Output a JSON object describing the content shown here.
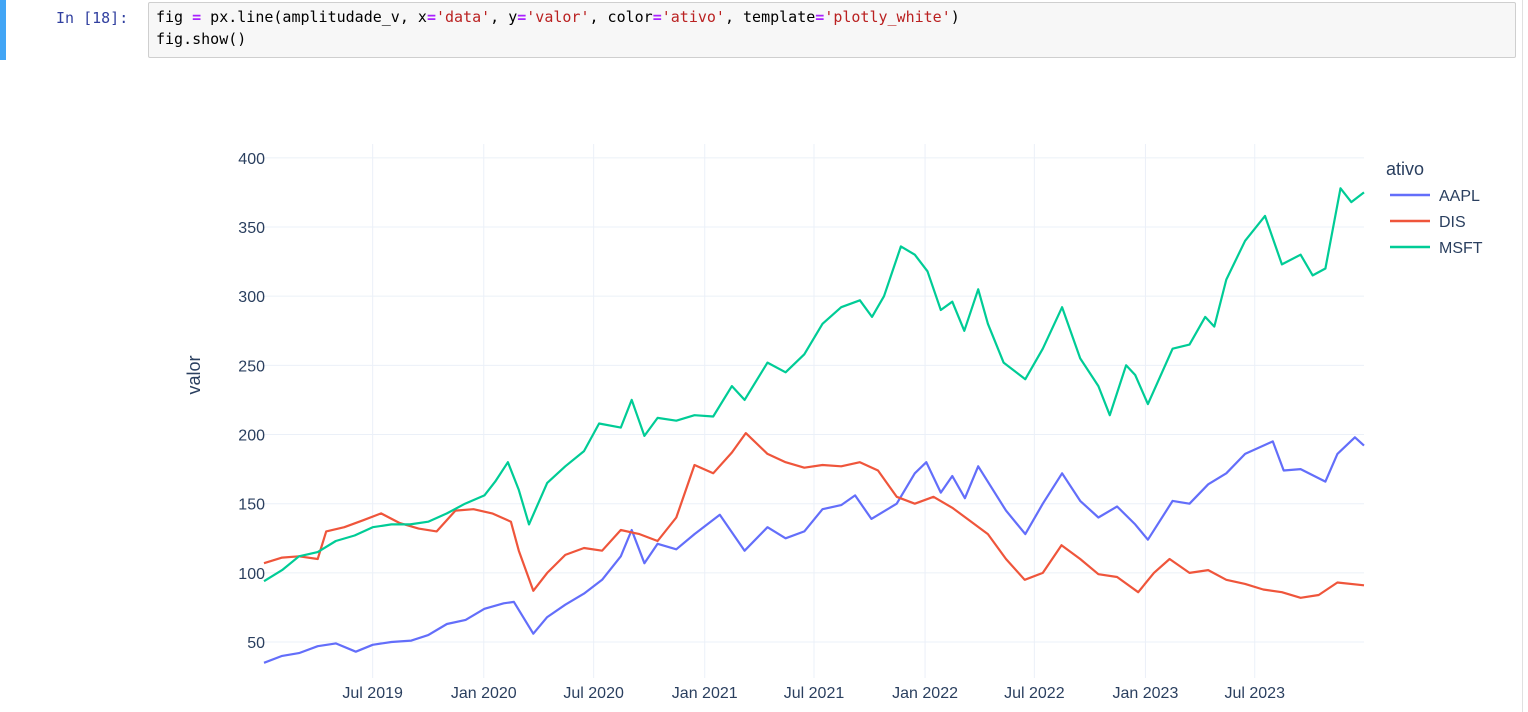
{
  "cell": {
    "prompt": "In [18]:",
    "code_tokens": [
      [
        {
          "t": "fig ",
          "c": ""
        },
        {
          "t": "=",
          "c": "op"
        },
        {
          "t": " px.line(amplitudade_v, x",
          "c": ""
        },
        {
          "t": "=",
          "c": "op"
        },
        {
          "t": "'data'",
          "c": "str"
        },
        {
          "t": ", y",
          "c": ""
        },
        {
          "t": "=",
          "c": "op"
        },
        {
          "t": "'valor'",
          "c": "str"
        },
        {
          "t": ", color",
          "c": ""
        },
        {
          "t": "=",
          "c": "op"
        },
        {
          "t": "'ativo'",
          "c": "str"
        },
        {
          "t": ", template",
          "c": ""
        },
        {
          "t": "=",
          "c": "op"
        },
        {
          "t": "'plotly_white'",
          "c": "str"
        },
        {
          "t": ")",
          "c": ""
        }
      ],
      [
        {
          "t": "fig.show()",
          "c": ""
        }
      ]
    ]
  },
  "chart_data": {
    "type": "line",
    "xlabel": "",
    "ylabel": "valor",
    "legend_title": "ativo",
    "legend_position": "top-right",
    "grid": true,
    "x_range": [
      "2019-01-02",
      "2023-12-29"
    ],
    "ylim": [
      24,
      410
    ],
    "y_ticks": [
      50,
      100,
      150,
      200,
      250,
      300,
      350,
      400
    ],
    "x_ticks": [
      {
        "date": "2019-07-01",
        "label": "Jul 2019"
      },
      {
        "date": "2020-01-01",
        "label": "Jan 2020"
      },
      {
        "date": "2020-07-01",
        "label": "Jul 2020"
      },
      {
        "date": "2021-01-01",
        "label": "Jan 2021"
      },
      {
        "date": "2021-07-01",
        "label": "Jul 2021"
      },
      {
        "date": "2022-01-01",
        "label": "Jan 2022"
      },
      {
        "date": "2022-07-01",
        "label": "Jul 2022"
      },
      {
        "date": "2023-01-01",
        "label": "Jan 2023"
      },
      {
        "date": "2023-07-01",
        "label": "Jul 2023"
      }
    ],
    "series": [
      {
        "name": "AAPL",
        "color": "#636efa",
        "points": [
          [
            "2019-01-02",
            35
          ],
          [
            "2019-02-01",
            40
          ],
          [
            "2019-03-01",
            42
          ],
          [
            "2019-04-01",
            47
          ],
          [
            "2019-05-01",
            49
          ],
          [
            "2019-06-03",
            43
          ],
          [
            "2019-07-01",
            48
          ],
          [
            "2019-08-01",
            50
          ],
          [
            "2019-09-03",
            51
          ],
          [
            "2019-10-01",
            55
          ],
          [
            "2019-11-01",
            63
          ],
          [
            "2019-12-02",
            66
          ],
          [
            "2020-01-02",
            74
          ],
          [
            "2020-02-03",
            78
          ],
          [
            "2020-02-20",
            79
          ],
          [
            "2020-03-23",
            56
          ],
          [
            "2020-04-15",
            68
          ],
          [
            "2020-05-15",
            77
          ],
          [
            "2020-06-15",
            85
          ],
          [
            "2020-07-15",
            95
          ],
          [
            "2020-08-15",
            112
          ],
          [
            "2020-09-02",
            131
          ],
          [
            "2020-09-23",
            107
          ],
          [
            "2020-10-15",
            121
          ],
          [
            "2020-11-15",
            117
          ],
          [
            "2020-12-15",
            128
          ],
          [
            "2021-01-26",
            142
          ],
          [
            "2021-03-08",
            116
          ],
          [
            "2021-04-15",
            133
          ],
          [
            "2021-05-15",
            125
          ],
          [
            "2021-06-15",
            130
          ],
          [
            "2021-07-15",
            146
          ],
          [
            "2021-08-15",
            149
          ],
          [
            "2021-09-07",
            156
          ],
          [
            "2021-10-04",
            139
          ],
          [
            "2021-11-15",
            150
          ],
          [
            "2021-12-15",
            172
          ],
          [
            "2022-01-03",
            180
          ],
          [
            "2022-01-27",
            158
          ],
          [
            "2022-02-15",
            170
          ],
          [
            "2022-03-08",
            154
          ],
          [
            "2022-03-30",
            177
          ],
          [
            "2022-05-15",
            145
          ],
          [
            "2022-06-16",
            128
          ],
          [
            "2022-07-15",
            150
          ],
          [
            "2022-08-16",
            172
          ],
          [
            "2022-09-15",
            152
          ],
          [
            "2022-10-15",
            140
          ],
          [
            "2022-11-15",
            148
          ],
          [
            "2022-12-15",
            135
          ],
          [
            "2023-01-05",
            124
          ],
          [
            "2023-02-15",
            152
          ],
          [
            "2023-03-15",
            150
          ],
          [
            "2023-04-15",
            164
          ],
          [
            "2023-05-15",
            172
          ],
          [
            "2023-06-15",
            186
          ],
          [
            "2023-07-31",
            195
          ],
          [
            "2023-08-18",
            174
          ],
          [
            "2023-09-15",
            175
          ],
          [
            "2023-10-26",
            166
          ],
          [
            "2023-11-15",
            186
          ],
          [
            "2023-12-14",
            198
          ],
          [
            "2023-12-29",
            192
          ]
        ]
      },
      {
        "name": "DIS",
        "color": "#ef553b",
        "points": [
          [
            "2019-01-02",
            107
          ],
          [
            "2019-02-01",
            111
          ],
          [
            "2019-03-01",
            112
          ],
          [
            "2019-04-01",
            110
          ],
          [
            "2019-04-15",
            130
          ],
          [
            "2019-05-15",
            133
          ],
          [
            "2019-06-15",
            138
          ],
          [
            "2019-07-15",
            143
          ],
          [
            "2019-08-15",
            136
          ],
          [
            "2019-09-15",
            132
          ],
          [
            "2019-10-15",
            130
          ],
          [
            "2019-11-15",
            145
          ],
          [
            "2019-12-15",
            146
          ],
          [
            "2020-01-15",
            143
          ],
          [
            "2020-02-15",
            137
          ],
          [
            "2020-02-28",
            116
          ],
          [
            "2020-03-23",
            87
          ],
          [
            "2020-04-15",
            100
          ],
          [
            "2020-05-15",
            113
          ],
          [
            "2020-06-15",
            118
          ],
          [
            "2020-07-15",
            116
          ],
          [
            "2020-08-15",
            131
          ],
          [
            "2020-09-15",
            128
          ],
          [
            "2020-10-15",
            123
          ],
          [
            "2020-11-15",
            140
          ],
          [
            "2020-12-15",
            178
          ],
          [
            "2021-01-15",
            172
          ],
          [
            "2021-02-15",
            187
          ],
          [
            "2021-03-10",
            201
          ],
          [
            "2021-04-15",
            186
          ],
          [
            "2021-05-15",
            180
          ],
          [
            "2021-06-15",
            176
          ],
          [
            "2021-07-15",
            178
          ],
          [
            "2021-08-15",
            177
          ],
          [
            "2021-09-15",
            180
          ],
          [
            "2021-10-15",
            174
          ],
          [
            "2021-11-15",
            155
          ],
          [
            "2021-12-15",
            150
          ],
          [
            "2022-01-15",
            155
          ],
          [
            "2022-02-15",
            147
          ],
          [
            "2022-03-15",
            138
          ],
          [
            "2022-04-15",
            128
          ],
          [
            "2022-05-15",
            110
          ],
          [
            "2022-06-15",
            95
          ],
          [
            "2022-07-15",
            100
          ],
          [
            "2022-08-15",
            120
          ],
          [
            "2022-09-15",
            110
          ],
          [
            "2022-10-15",
            99
          ],
          [
            "2022-11-15",
            97
          ],
          [
            "2022-12-20",
            86
          ],
          [
            "2023-01-15",
            100
          ],
          [
            "2023-02-10",
            110
          ],
          [
            "2023-03-15",
            100
          ],
          [
            "2023-04-15",
            102
          ],
          [
            "2023-05-15",
            95
          ],
          [
            "2023-06-15",
            92
          ],
          [
            "2023-07-15",
            88
          ],
          [
            "2023-08-15",
            86
          ],
          [
            "2023-09-15",
            82
          ],
          [
            "2023-10-15",
            84
          ],
          [
            "2023-11-15",
            93
          ],
          [
            "2023-12-29",
            91
          ]
        ]
      },
      {
        "name": "MSFT",
        "color": "#00cc96",
        "points": [
          [
            "2019-01-02",
            94
          ],
          [
            "2019-02-01",
            102
          ],
          [
            "2019-03-01",
            112
          ],
          [
            "2019-04-01",
            115
          ],
          [
            "2019-05-01",
            123
          ],
          [
            "2019-06-01",
            127
          ],
          [
            "2019-07-01",
            133
          ],
          [
            "2019-08-01",
            135
          ],
          [
            "2019-09-01",
            135
          ],
          [
            "2019-10-01",
            137
          ],
          [
            "2019-11-01",
            143
          ],
          [
            "2019-12-01",
            150
          ],
          [
            "2020-01-02",
            156
          ],
          [
            "2020-01-20",
            166
          ],
          [
            "2020-02-10",
            180
          ],
          [
            "2020-02-28",
            160
          ],
          [
            "2020-03-16",
            135
          ],
          [
            "2020-04-15",
            165
          ],
          [
            "2020-05-15",
            177
          ],
          [
            "2020-06-15",
            188
          ],
          [
            "2020-07-10",
            208
          ],
          [
            "2020-08-15",
            205
          ],
          [
            "2020-09-02",
            225
          ],
          [
            "2020-09-23",
            199
          ],
          [
            "2020-10-15",
            212
          ],
          [
            "2020-11-15",
            210
          ],
          [
            "2020-12-15",
            214
          ],
          [
            "2021-01-15",
            213
          ],
          [
            "2021-02-15",
            235
          ],
          [
            "2021-03-08",
            225
          ],
          [
            "2021-04-15",
            252
          ],
          [
            "2021-05-15",
            245
          ],
          [
            "2021-06-15",
            258
          ],
          [
            "2021-07-15",
            280
          ],
          [
            "2021-08-15",
            292
          ],
          [
            "2021-09-15",
            297
          ],
          [
            "2021-10-05",
            285
          ],
          [
            "2021-10-25",
            300
          ],
          [
            "2021-11-22",
            336
          ],
          [
            "2021-12-15",
            330
          ],
          [
            "2022-01-05",
            318
          ],
          [
            "2022-01-27",
            290
          ],
          [
            "2022-02-15",
            296
          ],
          [
            "2022-03-07",
            275
          ],
          [
            "2022-03-30",
            305
          ],
          [
            "2022-04-15",
            280
          ],
          [
            "2022-05-11",
            252
          ],
          [
            "2022-06-16",
            240
          ],
          [
            "2022-07-15",
            262
          ],
          [
            "2022-08-16",
            292
          ],
          [
            "2022-09-15",
            255
          ],
          [
            "2022-10-15",
            235
          ],
          [
            "2022-11-03",
            214
          ],
          [
            "2022-11-30",
            250
          ],
          [
            "2022-12-15",
            243
          ],
          [
            "2023-01-05",
            222
          ],
          [
            "2023-02-15",
            262
          ],
          [
            "2023-03-15",
            265
          ],
          [
            "2023-04-10",
            285
          ],
          [
            "2023-04-25",
            278
          ],
          [
            "2023-05-15",
            312
          ],
          [
            "2023-06-15",
            340
          ],
          [
            "2023-07-18",
            358
          ],
          [
            "2023-08-15",
            323
          ],
          [
            "2023-09-15",
            330
          ],
          [
            "2023-10-05",
            315
          ],
          [
            "2023-10-26",
            320
          ],
          [
            "2023-11-20",
            378
          ],
          [
            "2023-12-08",
            368
          ],
          [
            "2023-12-29",
            375
          ]
        ]
      }
    ]
  }
}
